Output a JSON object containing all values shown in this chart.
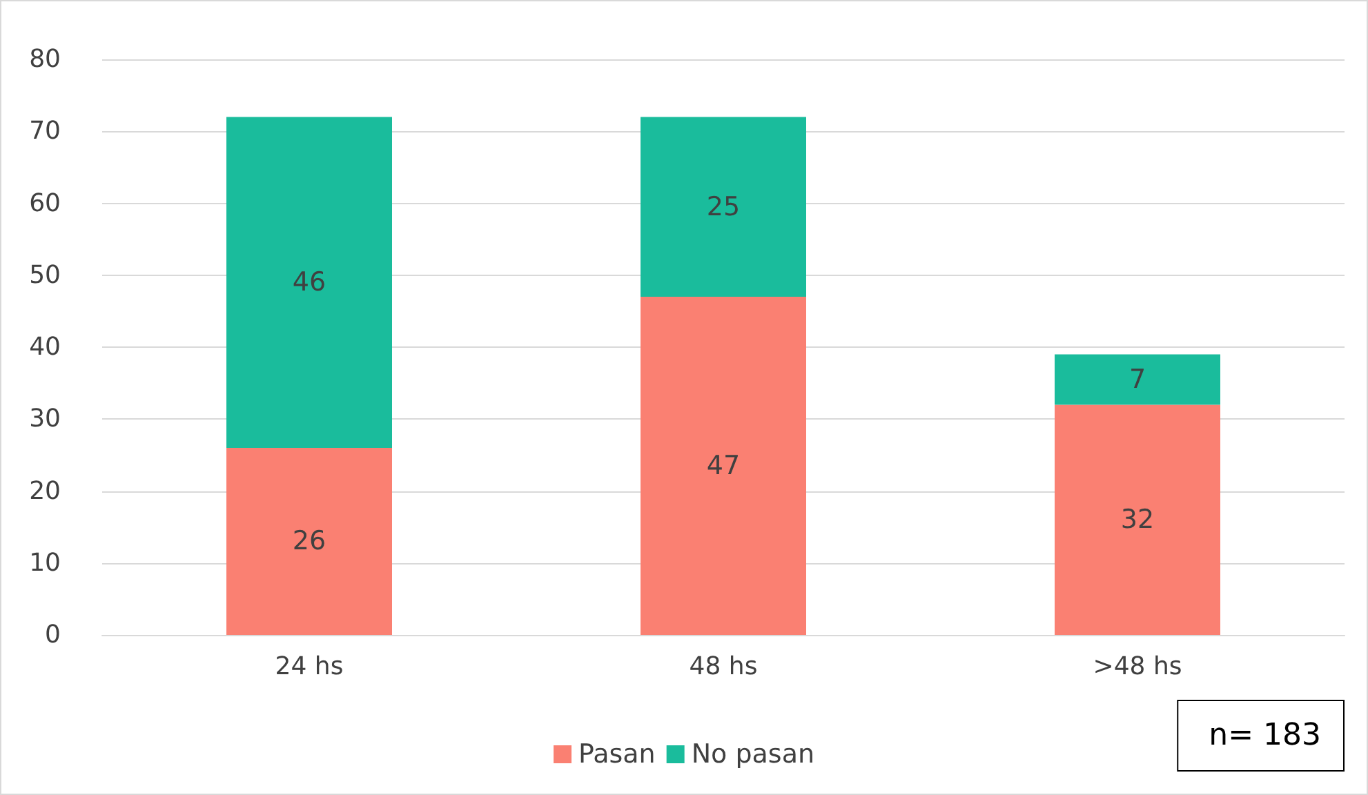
{
  "chart_data": {
    "type": "bar",
    "stacked": true,
    "categories": [
      "24 hs",
      "48 hs",
      ">48 hs"
    ],
    "series": [
      {
        "name": "Pasan",
        "color": "#fa8072",
        "values": [
          26,
          47,
          32
        ]
      },
      {
        "name": "No pasan",
        "color": "#1abc9c",
        "values": [
          46,
          25,
          7
        ]
      }
    ],
    "ylim": [
      0,
      80
    ],
    "yticks": [
      0,
      10,
      20,
      30,
      40,
      50,
      60,
      70,
      80
    ],
    "grid": "y",
    "legend": "bottom",
    "data_labels": true,
    "annotations": [
      "n= 183"
    ]
  }
}
